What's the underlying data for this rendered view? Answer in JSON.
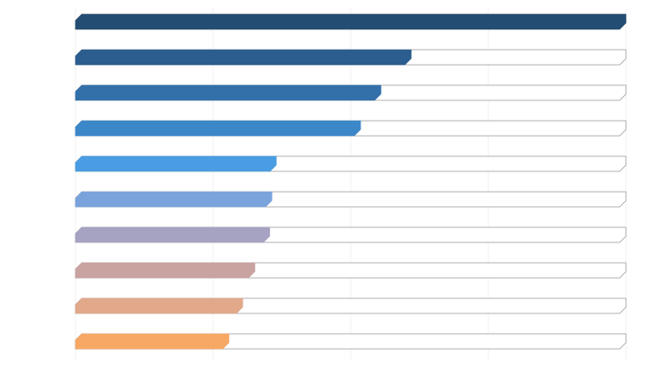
{
  "chart_data": {
    "type": "bar",
    "orientation": "horizontal",
    "style": "progress-track",
    "title": "",
    "xlabel": "",
    "ylabel": "",
    "xlim": [
      0,
      100
    ],
    "grid": true,
    "categories": [
      "",
      "",
      "",
      "",
      "",
      "",
      "",
      "",
      "",
      ""
    ],
    "values": [
      100,
      61,
      55.5,
      51.8,
      36.5,
      35.7,
      35.3,
      32.6,
      30.4,
      27.9
    ],
    "colors": [
      "#234d72",
      "#2b5d8e",
      "#3370aa",
      "#3c87c8",
      "#4a9de2",
      "#7aa3dc",
      "#a5a2c2",
      "#c9a3a0",
      "#e1a88a",
      "#f7a864"
    ],
    "track_border_color": "#999999",
    "grid_color": "#f0f0f0"
  }
}
